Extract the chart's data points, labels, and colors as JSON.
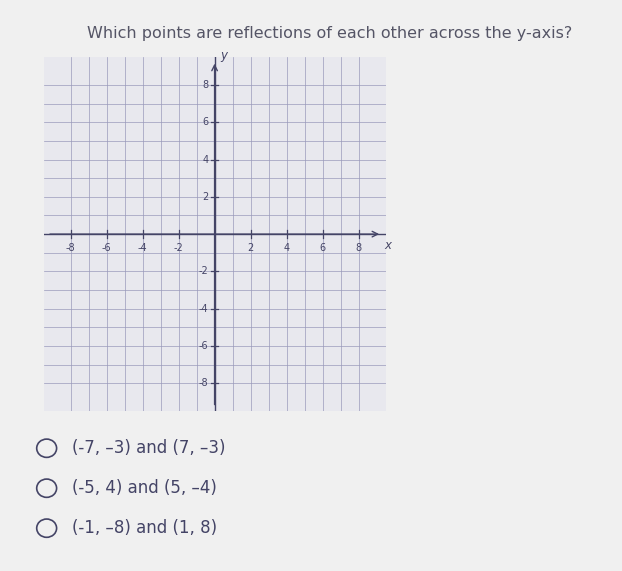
{
  "title": "Which points are reflections of each other across the y-axis?",
  "title_fontsize": 11.5,
  "title_color": "#555566",
  "background_color": "#f0f0f0",
  "panel_color": "#e8e8ee",
  "grid_color": "#9999bb",
  "axis_color": "#444466",
  "tick_label_color": "#444466",
  "xlim": [
    -9.5,
    9.5
  ],
  "ylim": [
    -9.5,
    9.5
  ],
  "xticks": [
    -8,
    -6,
    -4,
    -2,
    2,
    4,
    6,
    8
  ],
  "yticks": [
    -8,
    -6,
    -4,
    -2,
    2,
    4,
    6,
    8
  ],
  "xlabel": "x",
  "ylabel": "y",
  "answer_choices": [
    "(-7, –3) and (7, –3)",
    "(-5, 4) and (5, –4)",
    "(-1, –8) and (1, 8)"
  ],
  "choice_fontsize": 12,
  "choice_color": "#444466",
  "circle_color": "#444466"
}
